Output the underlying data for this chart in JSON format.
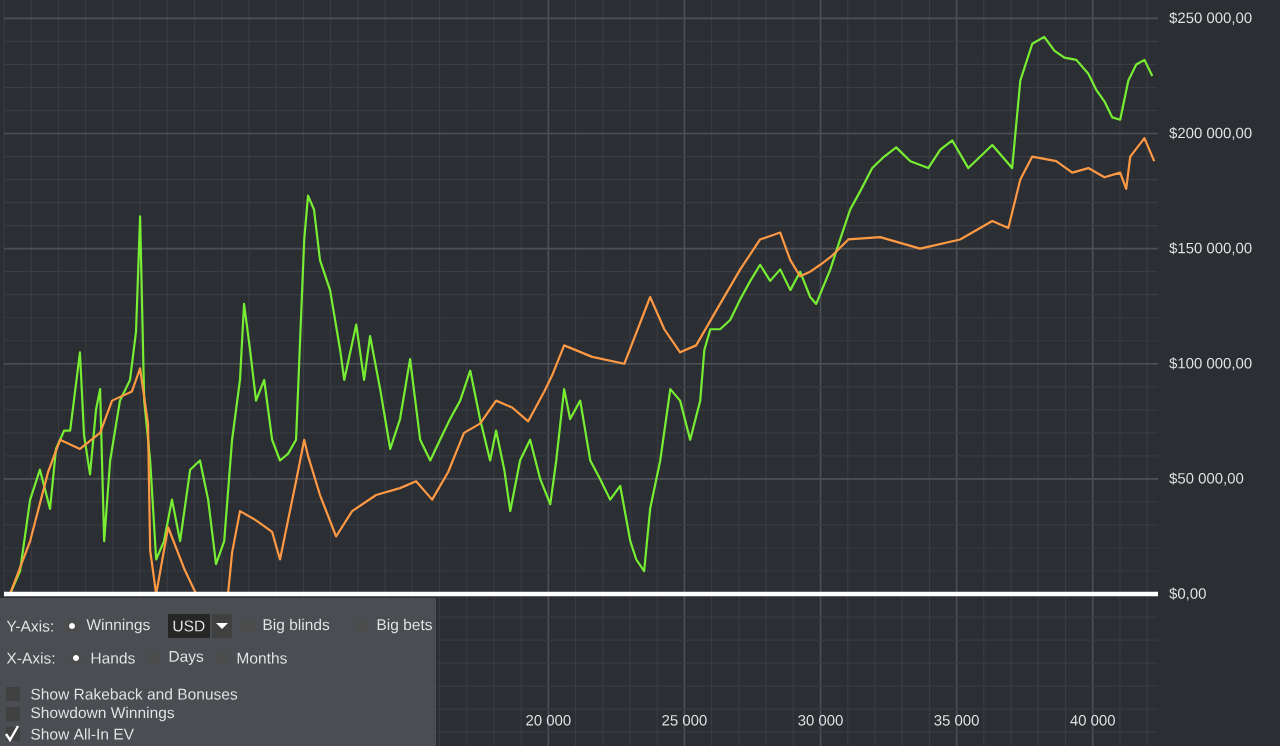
{
  "chart_data": {
    "type": "line",
    "xlim": [
      0,
      42400
    ],
    "ylim": [
      -66000,
      258000
    ],
    "xticks": [
      {
        "value": 20000,
        "label": "20 000"
      },
      {
        "value": 25000,
        "label": "25 000"
      },
      {
        "value": 30000,
        "label": "30 000"
      },
      {
        "value": 35000,
        "label": "35 000"
      },
      {
        "value": 40000,
        "label": "40 000"
      }
    ],
    "yticks": [
      {
        "value": 0,
        "label": "$0,00"
      },
      {
        "value": 50000,
        "label": "$50 000,00"
      },
      {
        "value": 100000,
        "label": "$100 000,00"
      },
      {
        "value": 150000,
        "label": "$150 000,00"
      },
      {
        "value": 200000,
        "label": "$200 000,00"
      },
      {
        "value": 250000,
        "label": "$250 000,00"
      }
    ],
    "grid": true,
    "ref_lines": [
      {
        "axis": "y",
        "value": 0,
        "color": "#ffffff"
      }
    ],
    "annotations": [
      "Y-Axis:",
      "Winnings",
      "USD",
      "Big blinds",
      "Big bets",
      "X-Axis:",
      "Hands",
      "Days",
      "Months",
      "Show Rakeback and Bonuses",
      "Showdown Winnings",
      "Show All-In EV"
    ],
    "series": [
      {
        "color": "#77ee33",
        "x": [
          220,
          590,
          960,
          1320,
          1690,
          1910,
          2210,
          2430,
          2790,
          2940,
          3160,
          3380,
          3530,
          3680,
          3900,
          4260,
          4630,
          4850,
          5000,
          5150,
          5370,
          5590,
          5880,
          6170,
          6470,
          6840,
          7200,
          7500,
          7790,
          8090,
          8380,
          8670,
          8820,
          9040,
          9260,
          9560,
          9850,
          10140,
          10440,
          10730,
          11030,
          11170,
          11390,
          11610,
          11980,
          12350,
          12500,
          12940,
          13230,
          13450,
          13820,
          14190,
          14550,
          14920,
          15290,
          15660,
          16020,
          16390,
          16760,
          17130,
          17490,
          17860,
          18080,
          18380,
          18600,
          18960,
          19330,
          19700,
          20070,
          20290,
          20580,
          20800,
          21170,
          21540,
          21900,
          22270,
          22640,
          23010,
          23230,
          23520,
          23740,
          24110,
          24480,
          24840,
          25210,
          25580,
          25730,
          25950,
          26310,
          26680,
          27050,
          27420,
          27780,
          28150,
          28520,
          28890,
          29250,
          29620,
          29840,
          30360,
          30720,
          31090,
          31460,
          31900,
          32340,
          32780,
          33300,
          33960,
          34400,
          34840,
          35430,
          35870,
          36310,
          37040,
          37340,
          37780,
          38220,
          38590,
          38960,
          39400,
          39840,
          40130,
          40430,
          40720,
          41010,
          41310,
          41600,
          41900,
          42190
        ],
        "values": [
          0,
          10000,
          41000,
          54000,
          37000,
          63000,
          71000,
          71000,
          105000,
          69000,
          52000,
          80000,
          89000,
          23000,
          58000,
          84000,
          93000,
          114000,
          164000,
          84000,
          58000,
          15000,
          23000,
          41000,
          23000,
          54000,
          58000,
          41000,
          13000,
          23000,
          67000,
          93000,
          126000,
          106000,
          84000,
          93000,
          67000,
          58000,
          61000,
          67000,
          154000,
          173000,
          167000,
          145000,
          132000,
          106000,
          93000,
          117000,
          93000,
          112000,
          89000,
          63000,
          76000,
          102000,
          67000,
          58000,
          67000,
          76000,
          84000,
          97000,
          76000,
          58000,
          71000,
          54000,
          36000,
          58000,
          67000,
          50000,
          39000,
          58000,
          89000,
          76000,
          84000,
          58000,
          50000,
          41000,
          47000,
          23000,
          15000,
          10000,
          37000,
          58000,
          89000,
          84000,
          67000,
          84000,
          106000,
          115000,
          115000,
          119000,
          128000,
          136000,
          143000,
          136000,
          141000,
          132000,
          140000,
          129000,
          126000,
          141000,
          154000,
          167000,
          175000,
          185000,
          190000,
          194000,
          188000,
          185000,
          193000,
          197000,
          185000,
          190000,
          195000,
          185000,
          223000,
          239000,
          242000,
          236000,
          233000,
          232000,
          226000,
          219000,
          214000,
          207000,
          206000,
          223000,
          230000,
          232000,
          225000
        ]
      },
      {
        "color": "#ff9944",
        "x": [
          220,
          960,
          1620,
          2060,
          2790,
          3530,
          3970,
          4700,
          5000,
          5290,
          5370,
          5590,
          6030,
          6620,
          7060,
          7790,
          8230,
          8380,
          8670,
          9260,
          9850,
          10140,
          10730,
          11030,
          11170,
          11610,
          12200,
          12790,
          13670,
          14550,
          15140,
          15730,
          16320,
          16900,
          17490,
          18080,
          18670,
          19260,
          19850,
          20140,
          20580,
          21610,
          22790,
          23740,
          24260,
          24840,
          25430,
          26310,
          27050,
          27780,
          28520,
          28890,
          29250,
          29620,
          29990,
          30430,
          31020,
          32190,
          33660,
          35130,
          36310,
          36900,
          37340,
          37780,
          38660,
          39250,
          39840,
          40430,
          41010,
          41230,
          41380,
          41900,
          42260
        ],
        "values": [
          0,
          23000,
          53000,
          67000,
          63000,
          70000,
          84000,
          88000,
          98000,
          74000,
          19000,
          0,
          29000,
          11000,
          0,
          0,
          0,
          18000,
          36000,
          32000,
          27000,
          15000,
          49000,
          67000,
          60000,
          43000,
          25000,
          36000,
          43000,
          46000,
          49000,
          41000,
          53000,
          70000,
          74000,
          84000,
          81000,
          75000,
          88000,
          95000,
          108000,
          103000,
          100000,
          129000,
          115000,
          105000,
          108000,
          126000,
          141000,
          154000,
          157000,
          145000,
          138000,
          140000,
          143000,
          147000,
          154000,
          155000,
          150000,
          154000,
          162000,
          159000,
          180000,
          190000,
          188000,
          183000,
          185000,
          181000,
          183000,
          176000,
          190000,
          198000,
          188000
        ]
      }
    ]
  }
}
